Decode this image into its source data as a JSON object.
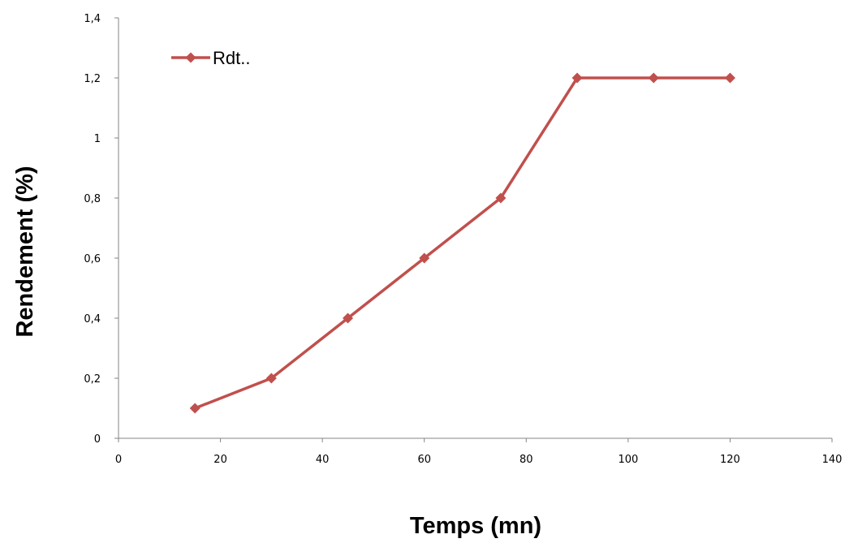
{
  "chart_data": {
    "type": "line",
    "title": "",
    "xlabel": "Temps (mn)",
    "ylabel": "Rendement (%)",
    "xlim": [
      0,
      140
    ],
    "ylim": [
      0,
      1.4
    ],
    "x_ticks": [
      "0",
      "20",
      "40",
      "60",
      "80",
      "100",
      "120",
      "140"
    ],
    "y_ticks": [
      "0",
      "0,2",
      "0,4",
      "0,6",
      "0,8",
      "1",
      "1,2",
      "1,4"
    ],
    "grid": false,
    "legend_position": "top-left",
    "series": [
      {
        "name": "Rdt..",
        "color": "#c0504d",
        "marker": "diamond",
        "x": [
          15,
          30,
          45,
          60,
          75,
          90,
          105,
          120
        ],
        "y": [
          0.1,
          0.2,
          0.4,
          0.6,
          0.8,
          1.2,
          1.2,
          1.2
        ]
      }
    ]
  }
}
